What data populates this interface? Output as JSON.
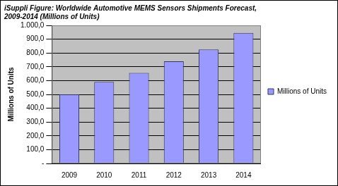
{
  "chart_data": {
    "type": "bar",
    "title": [
      "iSuppli Figure: Worldwide Automotive MEMS Sensors Shipments Forecast,",
      "2009-2014 (Millions of Units)"
    ],
    "y_label": "Millions of Units",
    "categories": [
      "2009",
      "2010",
      "2011",
      "2012",
      "2013",
      "2014"
    ],
    "series": [
      {
        "name": "Millions of Units",
        "color": "#9999ff",
        "values": [
          500,
          590,
          655,
          740,
          825,
          945
        ]
      }
    ],
    "ylim": [
      0,
      1000
    ],
    "yticks": [
      {
        "value": 0,
        "label": "-"
      },
      {
        "value": 100,
        "label": "100,0"
      },
      {
        "value": 200,
        "label": "200,0"
      },
      {
        "value": 300,
        "label": "300,0"
      },
      {
        "value": 400,
        "label": "400,0"
      },
      {
        "value": 500,
        "label": "500,0"
      },
      {
        "value": 600,
        "label": "600,0"
      },
      {
        "value": 700,
        "label": "700,0"
      },
      {
        "value": 800,
        "label": "800,0"
      },
      {
        "value": 900,
        "label": "900,0"
      },
      {
        "value": 1000,
        "label": "1.000,0"
      }
    ],
    "grid": true,
    "legend": "right"
  }
}
